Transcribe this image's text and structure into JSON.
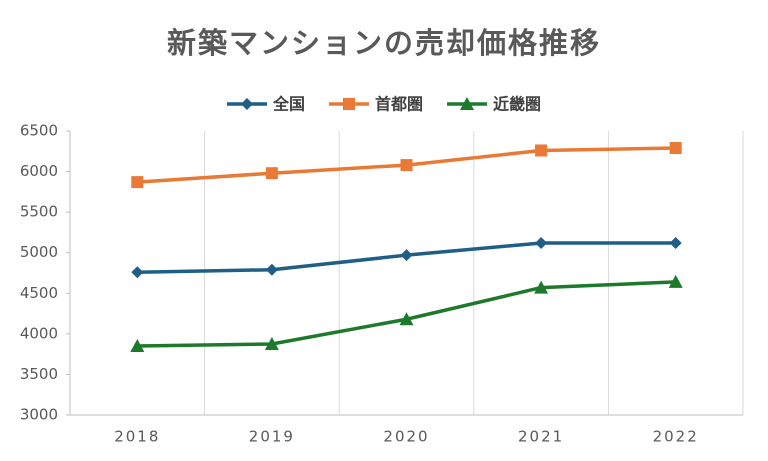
{
  "chart_data": {
    "type": "line",
    "title": "新築マンションの売却価格推移",
    "categories": [
      "2018",
      "2019",
      "2020",
      "2021",
      "2022"
    ],
    "series": [
      {
        "name": "全国",
        "color": "#1f5f86",
        "marker": "diamond",
        "values": [
          4760,
          4790,
          4970,
          5120,
          5120
        ]
      },
      {
        "name": "首都圏",
        "color": "#e97a35",
        "marker": "square",
        "values": [
          5870,
          5980,
          6080,
          6260,
          6290
        ]
      },
      {
        "name": "近畿圏",
        "color": "#1e7a2b",
        "marker": "triangle",
        "values": [
          3850,
          3875,
          4180,
          4570,
          4640
        ]
      }
    ],
    "ylim": [
      3000,
      6500
    ],
    "yticks": [
      3000,
      3500,
      4000,
      4500,
      5000,
      5500,
      6000,
      6500
    ],
    "grid": "x",
    "legend": "top"
  }
}
